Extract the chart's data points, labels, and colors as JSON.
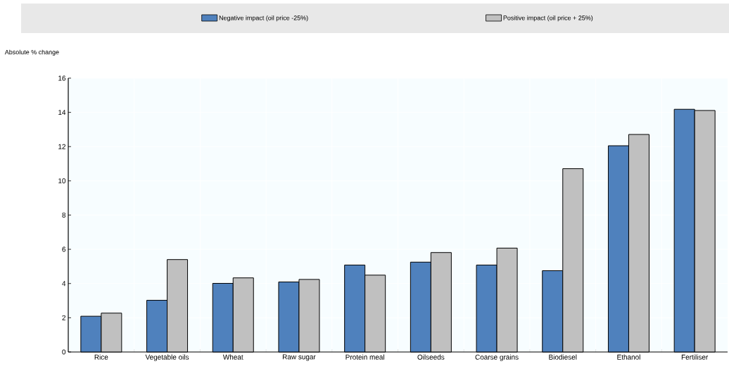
{
  "chart_data": {
    "type": "bar",
    "ylabel": "Absolute % change",
    "categories": [
      "Rice",
      "Vegetable oils",
      "Wheat",
      "Raw sugar",
      "Protein meal",
      "Oilseeds",
      "Coarse grains",
      "Biodiesel",
      "Ethanol",
      "Fertiliser"
    ],
    "series": [
      {
        "name": "Negative impact (oil price -25%)",
        "color": "#4f81bd",
        "values": [
          2.09,
          3.02,
          4.01,
          4.09,
          5.08,
          5.25,
          5.08,
          4.75,
          12.05,
          14.18
        ]
      },
      {
        "name": "Positive impact (oil price + 25%)",
        "color": "#c0c0c0",
        "values": [
          2.27,
          5.4,
          4.33,
          4.24,
          4.49,
          5.81,
          6.07,
          10.71,
          12.71,
          14.11
        ]
      }
    ],
    "ylim": [
      0,
      16
    ],
    "yticks": [
      0,
      2,
      4,
      6,
      8,
      10,
      12,
      14,
      16
    ],
    "grid": true,
    "legend": "top"
  }
}
